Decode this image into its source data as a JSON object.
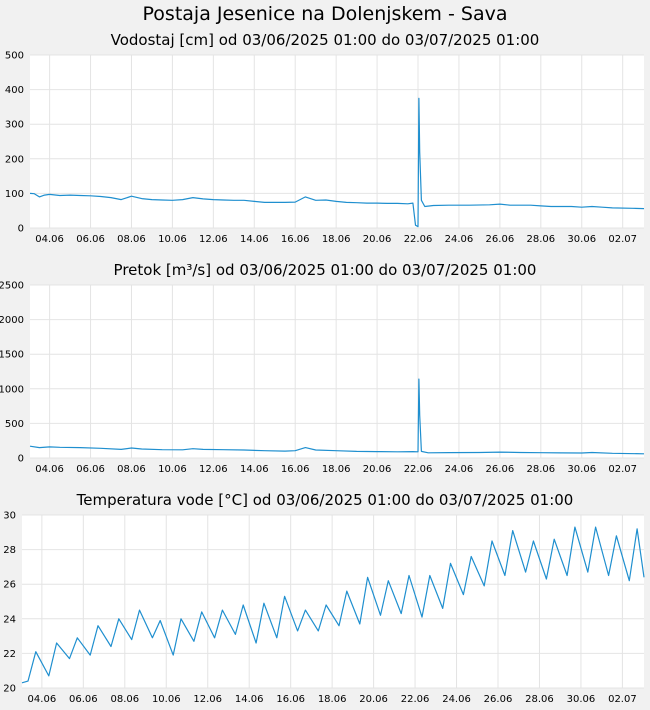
{
  "page": {
    "title": "Postaja Jesenice na Dolenjskem - Sava"
  },
  "style": {
    "line_color": "#1f8fcf",
    "plot_background": "#ffffff",
    "grid_color": "#e4e4e4",
    "page_background": "#f1f1f1"
  },
  "chart_data": [
    {
      "type": "line",
      "title": "Vodostaj [cm] od 03/06/2025 01:00 do 03/07/2025 01:00",
      "xlabel": "",
      "ylabel": "",
      "ylim": [
        0,
        500
      ],
      "yticks": [
        "0",
        "100",
        "200",
        "300",
        "400",
        "500"
      ],
      "xlim": [
        "03/06/2025 01:00",
        "03/07/2025 01:00"
      ],
      "xticks": [
        "04.06",
        "06.06",
        "08.06",
        "10.06",
        "12.06",
        "14.06",
        "16.06",
        "18.06",
        "20.06",
        "22.06",
        "24.06",
        "26.06",
        "28.06",
        "30.06",
        "02.07"
      ],
      "grid": true,
      "legend": "none",
      "series": [
        {
          "points": [
            [
              "2025-06-03T01:00",
              100
            ],
            [
              "2025-06-03T06:00",
              99
            ],
            [
              "2025-06-03T12:00",
              90
            ],
            [
              "2025-06-03T18:00",
              95
            ],
            [
              "2025-06-04T00:00",
              97
            ],
            [
              "2025-06-04T12:00",
              94
            ],
            [
              "2025-06-05T00:00",
              95
            ],
            [
              "2025-06-05T12:00",
              94
            ],
            [
              "2025-06-06T00:00",
              93
            ],
            [
              "2025-06-06T12:00",
              91
            ],
            [
              "2025-06-07T00:00",
              88
            ],
            [
              "2025-06-07T12:00",
              82
            ],
            [
              "2025-06-08T00:00",
              92
            ],
            [
              "2025-06-08T12:00",
              85
            ],
            [
              "2025-06-09T00:00",
              82
            ],
            [
              "2025-06-09T12:00",
              81
            ],
            [
              "2025-06-10T00:00",
              80
            ],
            [
              "2025-06-10T12:00",
              82
            ],
            [
              "2025-06-11T00:00",
              88
            ],
            [
              "2025-06-11T12:00",
              84
            ],
            [
              "2025-06-12T00:00",
              82
            ],
            [
              "2025-06-12T12:00",
              81
            ],
            [
              "2025-06-13T00:00",
              80
            ],
            [
              "2025-06-13T12:00",
              80
            ],
            [
              "2025-06-14T00:00",
              77
            ],
            [
              "2025-06-14T12:00",
              74
            ],
            [
              "2025-06-15T00:00",
              74
            ],
            [
              "2025-06-15T12:00",
              74
            ],
            [
              "2025-06-16T00:00",
              75
            ],
            [
              "2025-06-16T12:00",
              90
            ],
            [
              "2025-06-17T00:00",
              80
            ],
            [
              "2025-06-17T12:00",
              81
            ],
            [
              "2025-06-18T00:00",
              77
            ],
            [
              "2025-06-18T12:00",
              74
            ],
            [
              "2025-06-19T00:00",
              73
            ],
            [
              "2025-06-19T12:00",
              72
            ],
            [
              "2025-06-20T00:00",
              72
            ],
            [
              "2025-06-20T12:00",
              71
            ],
            [
              "2025-06-21T00:00",
              71
            ],
            [
              "2025-06-21T12:00",
              70
            ],
            [
              "2025-06-21T18:00",
              72
            ],
            [
              "2025-06-21T21:00",
              8
            ],
            [
              "2025-06-22T00:00",
              4
            ],
            [
              "2025-06-22T01:00",
              375
            ],
            [
              "2025-06-22T02:00",
              220
            ],
            [
              "2025-06-22T04:00",
              80
            ],
            [
              "2025-06-22T08:00",
              62
            ],
            [
              "2025-06-22T18:00",
              65
            ],
            [
              "2025-06-23T12:00",
              66
            ],
            [
              "2025-06-24T12:00",
              66
            ],
            [
              "2025-06-25T12:00",
              67
            ],
            [
              "2025-06-26T00:00",
              69
            ],
            [
              "2025-06-26T12:00",
              66
            ],
            [
              "2025-06-27T12:00",
              66
            ],
            [
              "2025-06-28T00:00",
              64
            ],
            [
              "2025-06-28T12:00",
              62
            ],
            [
              "2025-06-29T12:00",
              62
            ],
            [
              "2025-06-30T00:00",
              60
            ],
            [
              "2025-06-30T12:00",
              62
            ],
            [
              "2025-07-01T00:00",
              60
            ],
            [
              "2025-07-01T12:00",
              58
            ],
            [
              "2025-07-02T12:00",
              57
            ],
            [
              "2025-07-03T01:00",
              56
            ]
          ]
        }
      ]
    },
    {
      "type": "line",
      "title": "Pretok [m³/s] od 03/06/2025 01:00 do 03/07/2025 01:00",
      "xlabel": "",
      "ylabel": "",
      "ylim": [
        0,
        2500
      ],
      "yticks": [
        "0",
        "500",
        "1000",
        "1500",
        "2000",
        "2500"
      ],
      "xlim": [
        "03/06/2025 01:00",
        "03/07/2025 01:00"
      ],
      "xticks": [
        "04.06",
        "06.06",
        "08.06",
        "10.06",
        "12.06",
        "14.06",
        "16.06",
        "18.06",
        "20.06",
        "22.06",
        "24.06",
        "26.06",
        "28.06",
        "30.06",
        "02.07"
      ],
      "grid": true,
      "legend": "none",
      "series": [
        {
          "points": [
            [
              "2025-06-03T01:00",
              170
            ],
            [
              "2025-06-03T12:00",
              150
            ],
            [
              "2025-06-04T00:00",
              160
            ],
            [
              "2025-06-04T12:00",
              155
            ],
            [
              "2025-06-05T12:00",
              150
            ],
            [
              "2025-06-06T12:00",
              140
            ],
            [
              "2025-06-07T12:00",
              125
            ],
            [
              "2025-06-08T00:00",
              145
            ],
            [
              "2025-06-08T12:00",
              130
            ],
            [
              "2025-06-09T12:00",
              120
            ],
            [
              "2025-06-10T12:00",
              118
            ],
            [
              "2025-06-11T00:00",
              135
            ],
            [
              "2025-06-11T12:00",
              125
            ],
            [
              "2025-06-12T12:00",
              120
            ],
            [
              "2025-06-13T12:00",
              115
            ],
            [
              "2025-06-14T12:00",
              105
            ],
            [
              "2025-06-15T12:00",
              100
            ],
            [
              "2025-06-16T00:00",
              105
            ],
            [
              "2025-06-16T12:00",
              150
            ],
            [
              "2025-06-17T00:00",
              115
            ],
            [
              "2025-06-18T00:00",
              105
            ],
            [
              "2025-06-19T00:00",
              95
            ],
            [
              "2025-06-20T00:00",
              92
            ],
            [
              "2025-06-21T00:00",
              90
            ],
            [
              "2025-06-21T18:00",
              92
            ],
            [
              "2025-06-22T00:00",
              90
            ],
            [
              "2025-06-22T01:00",
              1140
            ],
            [
              "2025-06-22T02:00",
              620
            ],
            [
              "2025-06-22T04:00",
              95
            ],
            [
              "2025-06-22T12:00",
              75
            ],
            [
              "2025-06-23T12:00",
              78
            ],
            [
              "2025-06-25T00:00",
              80
            ],
            [
              "2025-06-26T00:00",
              85
            ],
            [
              "2025-06-27T00:00",
              80
            ],
            [
              "2025-06-28T00:00",
              76
            ],
            [
              "2025-06-29T00:00",
              74
            ],
            [
              "2025-06-30T00:00",
              72
            ],
            [
              "2025-06-30T12:00",
              80
            ],
            [
              "2025-07-01T12:00",
              68
            ],
            [
              "2025-07-03T01:00",
              60
            ]
          ]
        }
      ]
    },
    {
      "type": "line",
      "title": "Temperatura vode [°C] od 03/06/2025 01:00 do 03/07/2025 01:00",
      "xlabel": "",
      "ylabel": "",
      "ylim": [
        20,
        30
      ],
      "yticks": [
        "20",
        "22",
        "24",
        "26",
        "28",
        "30"
      ],
      "xlim": [
        "03/06/2025 01:00",
        "03/07/2025 01:00"
      ],
      "xticks": [
        "04.06",
        "06.06",
        "08.06",
        "10.06",
        "12.06",
        "14.06",
        "16.06",
        "18.06",
        "20.06",
        "22.06",
        "24.06",
        "26.06",
        "28.06",
        "30.06",
        "02.07"
      ],
      "grid": true,
      "legend": "none",
      "series": [
        {
          "points": [
            [
              "2025-06-03T01:00",
              20.3
            ],
            [
              "2025-06-03T08:00",
              20.4
            ],
            [
              "2025-06-03T17:00",
              22.1
            ],
            [
              "2025-06-04T08:00",
              20.7
            ],
            [
              "2025-06-04T17:00",
              22.6
            ],
            [
              "2025-06-05T08:00",
              21.7
            ],
            [
              "2025-06-05T17:00",
              22.9
            ],
            [
              "2025-06-06T08:00",
              21.9
            ],
            [
              "2025-06-06T17:00",
              23.6
            ],
            [
              "2025-06-07T08:00",
              22.4
            ],
            [
              "2025-06-07T17:00",
              24.0
            ],
            [
              "2025-06-08T08:00",
              22.8
            ],
            [
              "2025-06-08T17:00",
              24.5
            ],
            [
              "2025-06-09T08:00",
              22.9
            ],
            [
              "2025-06-09T17:00",
              23.9
            ],
            [
              "2025-06-10T08:00",
              21.9
            ],
            [
              "2025-06-10T17:00",
              24.0
            ],
            [
              "2025-06-11T08:00",
              22.7
            ],
            [
              "2025-06-11T17:00",
              24.4
            ],
            [
              "2025-06-12T08:00",
              22.9
            ],
            [
              "2025-06-12T17:00",
              24.5
            ],
            [
              "2025-06-13T08:00",
              23.1
            ],
            [
              "2025-06-13T17:00",
              24.8
            ],
            [
              "2025-06-14T08:00",
              22.6
            ],
            [
              "2025-06-14T17:00",
              24.9
            ],
            [
              "2025-06-15T08:00",
              22.9
            ],
            [
              "2025-06-15T17:00",
              25.3
            ],
            [
              "2025-06-16T08:00",
              23.3
            ],
            [
              "2025-06-16T17:00",
              24.5
            ],
            [
              "2025-06-17T08:00",
              23.3
            ],
            [
              "2025-06-17T17:00",
              24.8
            ],
            [
              "2025-06-18T08:00",
              23.6
            ],
            [
              "2025-06-18T17:00",
              25.6
            ],
            [
              "2025-06-19T08:00",
              23.7
            ],
            [
              "2025-06-19T17:00",
              26.4
            ],
            [
              "2025-06-20T08:00",
              24.2
            ],
            [
              "2025-06-20T17:00",
              26.2
            ],
            [
              "2025-06-21T08:00",
              24.3
            ],
            [
              "2025-06-21T17:00",
              26.5
            ],
            [
              "2025-06-22T08:00",
              24.1
            ],
            [
              "2025-06-22T17:00",
              26.5
            ],
            [
              "2025-06-23T08:00",
              24.6
            ],
            [
              "2025-06-23T17:00",
              27.2
            ],
            [
              "2025-06-24T08:00",
              25.4
            ],
            [
              "2025-06-24T17:00",
              27.6
            ],
            [
              "2025-06-25T08:00",
              25.9
            ],
            [
              "2025-06-25T17:00",
              28.5
            ],
            [
              "2025-06-26T08:00",
              26.5
            ],
            [
              "2025-06-26T17:00",
              29.1
            ],
            [
              "2025-06-27T08:00",
              26.7
            ],
            [
              "2025-06-27T17:00",
              28.5
            ],
            [
              "2025-06-28T08:00",
              26.3
            ],
            [
              "2025-06-28T17:00",
              28.6
            ],
            [
              "2025-06-29T08:00",
              26.5
            ],
            [
              "2025-06-29T17:00",
              29.3
            ],
            [
              "2025-06-30T08:00",
              26.7
            ],
            [
              "2025-06-30T17:00",
              29.3
            ],
            [
              "2025-07-01T08:00",
              26.5
            ],
            [
              "2025-07-01T17:00",
              28.8
            ],
            [
              "2025-07-02T08:00",
              26.2
            ],
            [
              "2025-07-02T17:00",
              29.2
            ],
            [
              "2025-07-03T01:00",
              26.4
            ]
          ]
        }
      ]
    }
  ]
}
